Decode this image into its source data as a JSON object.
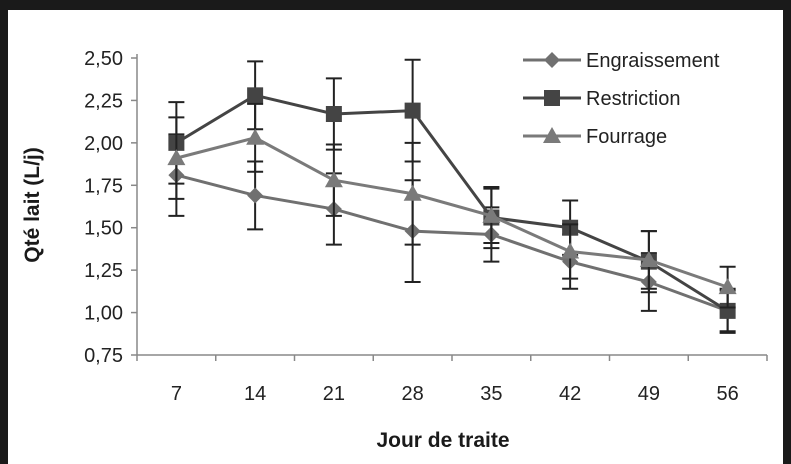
{
  "chart_data": {
    "type": "line",
    "title": "",
    "xlabel": "Jour de traite",
    "ylabel": "Qté lait (L/j)",
    "categories": [
      "7",
      "14",
      "21",
      "28",
      "35",
      "42",
      "49",
      "56"
    ],
    "ylim": [
      0.75,
      2.5
    ],
    "yticks": [
      "0,75",
      "1,00",
      "1,25",
      "1,50",
      "1,75",
      "2,00",
      "2,25",
      "2,50"
    ],
    "grid": false,
    "legend_position": "top-right",
    "series": [
      {
        "name": "Engraissement",
        "marker": "diamond",
        "color": "#707070",
        "values": [
          1.81,
          1.69,
          1.61,
          1.48,
          1.46,
          1.3,
          1.18,
          1.01
        ],
        "error": [
          0.24,
          0.2,
          0.21,
          0.3,
          0.16,
          0.16,
          0.17,
          0.12
        ]
      },
      {
        "name": "Restriction",
        "marker": "square",
        "color": "#444444",
        "values": [
          2.0,
          2.28,
          2.17,
          2.19,
          1.56,
          1.5,
          1.3,
          1.01
        ],
        "error": [
          0.24,
          0.2,
          0.21,
          0.3,
          0.18,
          0.16,
          0.18,
          0.13
        ]
      },
      {
        "name": "Fourrage",
        "marker": "triangle",
        "color": "#7a7a7a",
        "values": [
          1.91,
          2.03,
          1.78,
          1.7,
          1.57,
          1.36,
          1.31,
          1.15
        ],
        "error": [
          0.24,
          0.2,
          0.21,
          0.3,
          0.16,
          0.16,
          0.17,
          0.12
        ]
      }
    ]
  }
}
